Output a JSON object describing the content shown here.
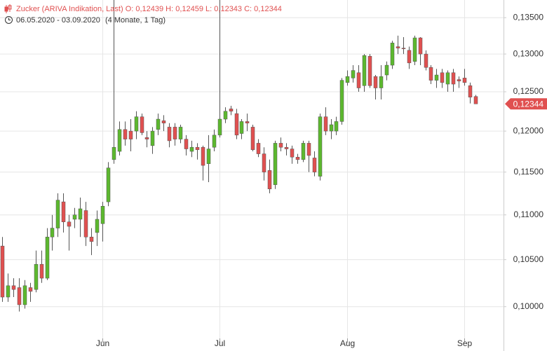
{
  "chart_data": {
    "type": "candlestick",
    "title": "Zucker (ARIVA Indikation, Last)  O: 0,12439  H: 0,12459  L: 0,12343  C: 0,12344",
    "subtitle": "06.05.2020 - 03.09.2020",
    "subtitle_note": "(4 Monate, 1 Tag)",
    "last_label": "0,12344",
    "log_scale": true,
    "grid": true,
    "up_color": "#5cb82e",
    "down_color": "#e05050",
    "ylim": [
      0.0955,
      0.1375
    ],
    "yticks": [
      {
        "value": 0.1,
        "label": "0,10000"
      },
      {
        "value": 0.105,
        "label": "0,10500"
      },
      {
        "value": 0.11,
        "label": "0,11000"
      },
      {
        "value": 0.115,
        "label": "0,11500"
      },
      {
        "value": 0.12,
        "label": "0,12000"
      },
      {
        "value": 0.125,
        "label": "0,12500"
      },
      {
        "value": 0.13,
        "label": "0,13000"
      },
      {
        "value": 0.135,
        "label": "0,13500"
      }
    ],
    "categories": [
      null,
      null,
      null,
      null,
      null,
      null,
      null,
      null,
      null,
      null,
      null,
      null,
      null,
      null,
      null,
      null,
      null,
      null,
      "Jun",
      null,
      null,
      null,
      null,
      null,
      null,
      null,
      null,
      null,
      null,
      null,
      null,
      null,
      null,
      null,
      null,
      null,
      null,
      null,
      null,
      "Jul",
      null,
      null,
      null,
      null,
      null,
      null,
      null,
      null,
      null,
      null,
      null,
      null,
      null,
      null,
      null,
      null,
      null,
      null,
      null,
      null,
      null,
      null,
      "Aug",
      null,
      null,
      null,
      null,
      null,
      null,
      null,
      null,
      null,
      null,
      null,
      null,
      null,
      null,
      null,
      null,
      null,
      null,
      null,
      null,
      "Sep",
      null,
      null
    ],
    "open": [
      0.1065,
      0.101,
      0.1022,
      0.102,
      0.1002,
      0.102,
      0.1018,
      0.1045,
      0.103,
      0.1075,
      0.1085,
      0.1115,
      0.1092,
      0.1095,
      0.1095,
      0.1105,
      0.1075,
      0.108,
      0.109,
      0.1115,
      0.1165,
      0.1175,
      0.1202,
      0.12,
      0.12,
      0.1218,
      0.1192,
      0.1182,
      0.1202,
      0.1213,
      0.1205,
      0.1205,
      0.119,
      0.119,
      0.1175,
      0.118,
      0.118,
      0.116,
      0.118,
      0.1195,
      0.1215,
      0.1228,
      0.1222,
      0.1197,
      0.1212,
      0.1205,
      0.1185,
      0.1172,
      0.1152,
      0.1135,
      0.1185,
      0.118,
      0.1178,
      0.1168,
      0.1165,
      0.1185,
      0.1167,
      0.1145,
      0.1218,
      0.12,
      0.12,
      0.1212,
      0.1262,
      0.1268,
      0.1275,
      0.1258,
      0.1297,
      0.127,
      0.1255,
      0.1272,
      0.1285,
      0.131,
      0.1308,
      0.1305,
      0.129,
      0.1322,
      0.13,
      0.1282,
      0.1265,
      0.1275,
      0.126,
      0.1275,
      0.1266,
      0.1268,
      0.1258,
      0.12439
    ],
    "high": [
      0.1075,
      0.1035,
      0.103,
      0.103,
      0.1028,
      0.1025,
      0.106,
      0.106,
      0.1085,
      0.11,
      0.1125,
      0.1125,
      0.11,
      0.1108,
      0.112,
      0.1115,
      0.1085,
      0.1105,
      0.1115,
      0.1162,
      0.1375,
      0.1212,
      0.1212,
      0.1215,
      0.1225,
      0.1222,
      0.12,
      0.1205,
      0.1222,
      0.122,
      0.121,
      0.121,
      0.1208,
      0.1195,
      0.1188,
      0.1185,
      0.1182,
      0.1195,
      0.1202,
      0.1375,
      0.123,
      0.1232,
      0.1228,
      0.1215,
      0.1222,
      0.1208,
      0.119,
      0.118,
      0.1165,
      0.1188,
      0.1192,
      0.1185,
      0.1182,
      0.1172,
      0.1188,
      0.1188,
      0.1175,
      0.1222,
      0.123,
      0.1215,
      0.1218,
      0.1268,
      0.1278,
      0.1285,
      0.1285,
      0.13,
      0.13,
      0.1272,
      0.1285,
      0.129,
      0.1318,
      0.1325,
      0.1323,
      0.131,
      0.1325,
      0.1323,
      0.1305,
      0.1285,
      0.128,
      0.128,
      0.1278,
      0.128,
      0.127,
      0.128,
      0.1262,
      0.12459
    ],
    "low": [
      0.1005,
      0.1005,
      0.101,
      0.0995,
      0.0998,
      0.1005,
      0.1015,
      0.1025,
      0.1028,
      0.106,
      0.1075,
      0.108,
      0.106,
      0.1085,
      0.1075,
      0.1065,
      0.1055,
      0.1065,
      0.107,
      0.111,
      0.116,
      0.117,
      0.1182,
      0.1175,
      0.119,
      0.1195,
      0.118,
      0.1172,
      0.1195,
      0.12,
      0.118,
      0.1182,
      0.1185,
      0.117,
      0.1168,
      0.1165,
      0.114,
      0.1138,
      0.1175,
      0.1192,
      0.121,
      0.122,
      0.119,
      0.119,
      0.12,
      0.1175,
      0.1168,
      0.114,
      0.1125,
      0.113,
      0.1175,
      0.117,
      0.116,
      0.116,
      0.1162,
      0.115,
      0.1145,
      0.114,
      0.1195,
      0.119,
      0.1195,
      0.1208,
      0.1258,
      0.1262,
      0.125,
      0.125,
      0.1255,
      0.124,
      0.124,
      0.1265,
      0.128,
      0.13,
      0.13,
      0.128,
      0.1285,
      0.1285,
      0.1278,
      0.126,
      0.1255,
      0.1255,
      0.125,
      0.125,
      0.1255,
      0.1258,
      0.1235,
      0.12343
    ],
    "close": [
      0.101,
      0.1022,
      0.1018,
      0.1002,
      0.1022,
      0.1016,
      0.1045,
      0.103,
      0.1075,
      0.1085,
      0.1117,
      0.1092,
      0.1087,
      0.11,
      0.1107,
      0.1075,
      0.107,
      0.1095,
      0.111,
      0.1155,
      0.118,
      0.1202,
      0.119,
      0.119,
      0.1218,
      0.1198,
      0.119,
      0.12,
      0.1215,
      0.121,
      0.1188,
      0.119,
      0.1205,
      0.1178,
      0.118,
      0.1177,
      0.1158,
      0.1178,
      0.1195,
      0.1215,
      0.1225,
      0.1225,
      0.1195,
      0.1212,
      0.121,
      0.1177,
      0.1172,
      0.115,
      0.113,
      0.1185,
      0.118,
      0.1178,
      0.1168,
      0.1165,
      0.1185,
      0.117,
      0.115,
      0.1218,
      0.12,
      0.1208,
      0.1212,
      0.1265,
      0.127,
      0.1278,
      0.1255,
      0.1298,
      0.1258,
      0.1255,
      0.127,
      0.1285,
      0.1315,
      0.1308,
      0.1307,
      0.1288,
      0.1322,
      0.13,
      0.1282,
      0.1265,
      0.1272,
      0.1262,
      0.1275,
      0.126,
      0.1264,
      0.1262,
      0.1243,
      0.12344
    ]
  }
}
